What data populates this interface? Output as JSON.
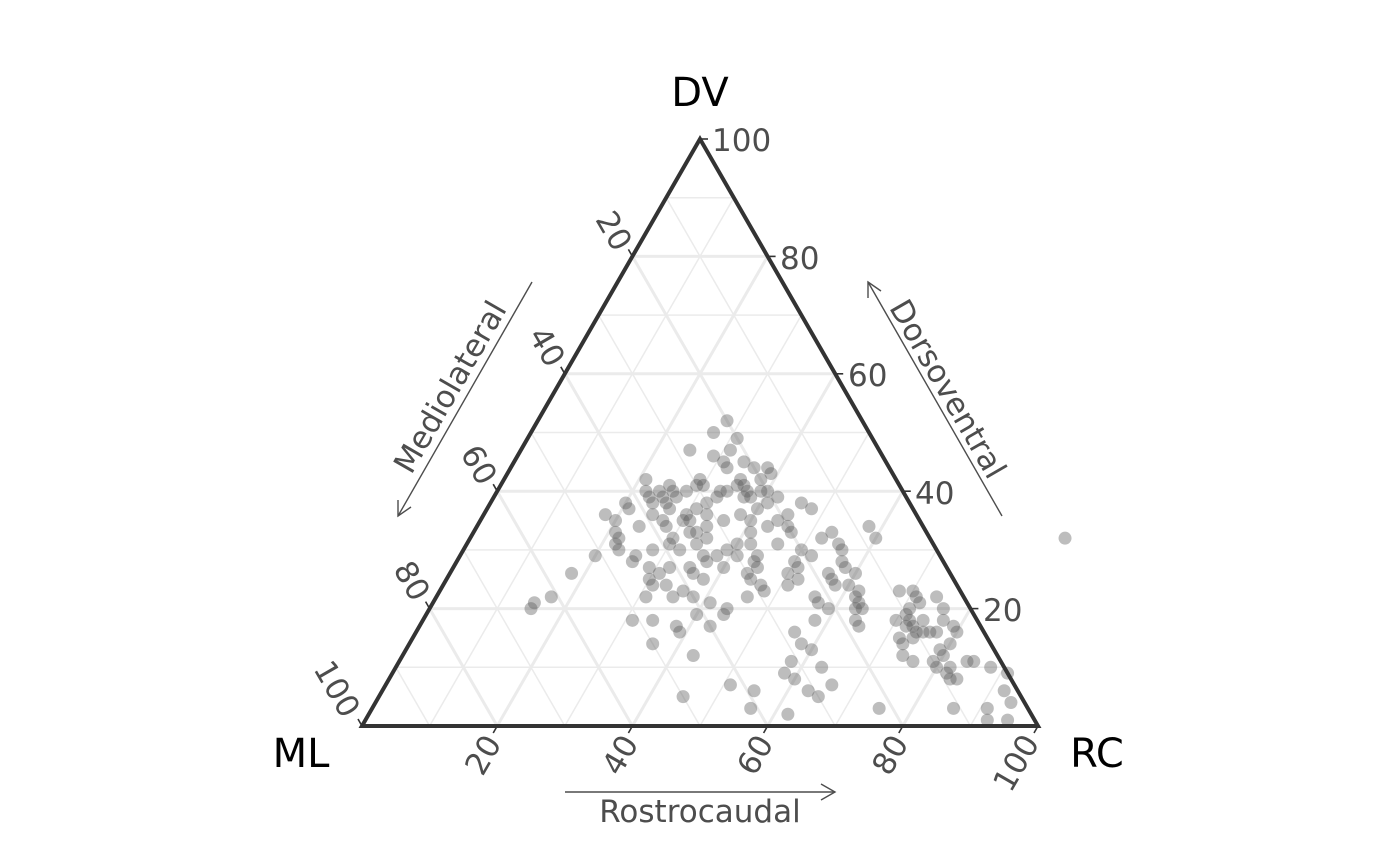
{
  "chart_data": {
    "type": "scatter",
    "subtype": "ternary",
    "vertices": {
      "top": "DV",
      "left": "ML",
      "right": "RC"
    },
    "axes": {
      "bottom": {
        "title": "Rostrocaudal",
        "variable": "RC",
        "ticks": [
          "20",
          "40",
          "60",
          "80",
          "100"
        ]
      },
      "right": {
        "title": "Dorsoventral",
        "variable": "DV",
        "ticks": [
          "20",
          "40",
          "60",
          "80",
          "100"
        ]
      },
      "left": {
        "title": "Mediolateral",
        "variable": "ML",
        "ticks": [
          "20",
          "40",
          "60",
          "80",
          "100"
        ]
      }
    },
    "range": [
      0,
      100
    ],
    "grid": true,
    "point_color": "#595959",
    "point_opacity": 0.4,
    "points": [
      {
        "dv": 52,
        "rc": 28
      },
      {
        "dv": 50,
        "rc": 27
      },
      {
        "dv": 47,
        "rc": 25
      },
      {
        "dv": 46,
        "rc": 29
      },
      {
        "dv": 47,
        "rc": 31
      },
      {
        "dv": 49,
        "rc": 31
      },
      {
        "dv": 42,
        "rc": 21
      },
      {
        "dv": 40,
        "rc": 22
      },
      {
        "dv": 40,
        "rc": 24
      },
      {
        "dv": 41,
        "rc": 25
      },
      {
        "dv": 40,
        "rc": 26
      },
      {
        "dv": 39,
        "rc": 25
      },
      {
        "dv": 39,
        "rc": 23
      },
      {
        "dv": 38,
        "rc": 24
      },
      {
        "dv": 39,
        "rc": 27
      },
      {
        "dv": 40,
        "rc": 28
      },
      {
        "dv": 41,
        "rc": 29
      },
      {
        "dv": 42,
        "rc": 29
      },
      {
        "dv": 41,
        "rc": 30
      },
      {
        "dv": 38,
        "rc": 26
      },
      {
        "dv": 37,
        "rc": 27
      },
      {
        "dv": 36,
        "rc": 25
      },
      {
        "dv": 35,
        "rc": 27
      },
      {
        "dv": 34,
        "rc": 24
      },
      {
        "dv": 33,
        "rc": 21
      },
      {
        "dv": 32,
        "rc": 22
      },
      {
        "dv": 31,
        "rc": 22
      },
      {
        "dv": 30,
        "rc": 23
      },
      {
        "dv": 29,
        "rc": 26
      },
      {
        "dv": 30,
        "rc": 28
      },
      {
        "dv": 32,
        "rc": 30
      },
      {
        "dv": 33,
        "rc": 32
      },
      {
        "dv": 35,
        "rc": 31
      },
      {
        "dv": 36,
        "rc": 30
      },
      {
        "dv": 37,
        "rc": 31
      },
      {
        "dv": 38,
        "rc": 32
      },
      {
        "dv": 39,
        "rc": 33
      },
      {
        "dv": 40,
        "rc": 33
      },
      {
        "dv": 40,
        "rc": 34
      },
      {
        "dv": 41,
        "rc": 35
      },
      {
        "dv": 42,
        "rc": 35
      },
      {
        "dv": 41,
        "rc": 36
      },
      {
        "dv": 40,
        "rc": 37
      },
      {
        "dv": 39,
        "rc": 37
      },
      {
        "dv": 39,
        "rc": 38
      },
      {
        "dv": 40,
        "rc": 39
      },
      {
        "dv": 42,
        "rc": 38
      },
      {
        "dv": 43,
        "rc": 39
      },
      {
        "dv": 44,
        "rc": 38
      },
      {
        "dv": 40,
        "rc": 40
      },
      {
        "dv": 39,
        "rc": 42
      },
      {
        "dv": 38,
        "rc": 41
      },
      {
        "dv": 37,
        "rc": 40
      },
      {
        "dv": 36,
        "rc": 38
      },
      {
        "dv": 35,
        "rc": 36
      },
      {
        "dv": 34,
        "rc": 34
      },
      {
        "dv": 33,
        "rc": 33
      },
      {
        "dv": 32,
        "rc": 35
      },
      {
        "dv": 31,
        "rc": 34
      },
      {
        "dv": 28,
        "rc": 26
      },
      {
        "dv": 27,
        "rc": 29
      },
      {
        "dv": 26,
        "rc": 31
      },
      {
        "dv": 25,
        "rc": 30
      },
      {
        "dv": 24,
        "rc": 31
      },
      {
        "dv": 22,
        "rc": 31
      },
      {
        "dv": 24,
        "rc": 33
      },
      {
        "dv": 27,
        "rc": 35
      },
      {
        "dv": 28,
        "rc": 37
      },
      {
        "dv": 29,
        "rc": 38
      },
      {
        "dv": 30,
        "rc": 39
      },
      {
        "dv": 31,
        "rc": 40
      },
      {
        "dv": 33,
        "rc": 41
      },
      {
        "dv": 34,
        "rc": 43
      },
      {
        "dv": 35,
        "rc": 44
      },
      {
        "dv": 36,
        "rc": 45
      },
      {
        "dv": 38,
        "rc": 46
      },
      {
        "dv": 37,
        "rc": 48
      },
      {
        "dv": 34,
        "rc": 46
      },
      {
        "dv": 33,
        "rc": 47
      },
      {
        "dv": 31,
        "rc": 46
      },
      {
        "dv": 29,
        "rc": 44
      },
      {
        "dv": 28,
        "rc": 44
      },
      {
        "dv": 27,
        "rc": 45
      },
      {
        "dv": 26,
        "rc": 44
      },
      {
        "dv": 25,
        "rc": 45
      },
      {
        "dv": 24,
        "rc": 47
      },
      {
        "dv": 23,
        "rc": 48
      },
      {
        "dv": 22,
        "rc": 46
      },
      {
        "dv": 20,
        "rc": 44
      },
      {
        "dv": 19,
        "rc": 44
      },
      {
        "dv": 17,
        "rc": 43
      },
      {
        "dv": 12,
        "rc": 43
      },
      {
        "dv": 30,
        "rc": 50
      },
      {
        "dv": 29,
        "rc": 52
      },
      {
        "dv": 28,
        "rc": 50
      },
      {
        "dv": 27,
        "rc": 51
      },
      {
        "dv": 26,
        "rc": 50
      },
      {
        "dv": 25,
        "rc": 52
      },
      {
        "dv": 24,
        "rc": 51
      },
      {
        "dv": 32,
        "rc": 52
      },
      {
        "dv": 33,
        "rc": 53
      },
      {
        "dv": 31,
        "rc": 55
      },
      {
        "dv": 30,
        "rc": 56
      },
      {
        "dv": 28,
        "rc": 57
      },
      {
        "dv": 26,
        "rc": 56
      },
      {
        "dv": 25,
        "rc": 57
      },
      {
        "dv": 24,
        "rc": 58
      },
      {
        "dv": 22,
        "rc": 56
      },
      {
        "dv": 21,
        "rc": 57
      },
      {
        "dv": 20,
        "rc": 59
      },
      {
        "dv": 18,
        "rc": 58
      },
      {
        "dv": 16,
        "rc": 56
      },
      {
        "dv": 14,
        "rc": 58
      },
      {
        "dv": 13,
        "rc": 60
      },
      {
        "dv": 11,
        "rc": 58
      },
      {
        "dv": 9,
        "rc": 58
      },
      {
        "dv": 6,
        "rc": 55
      },
      {
        "dv": 8,
        "rc": 60
      },
      {
        "dv": 10,
        "rc": 63
      },
      {
        "dv": 6,
        "rc": 63
      },
      {
        "dv": 5,
        "rc": 65
      },
      {
        "dv": 7,
        "rc": 66
      },
      {
        "dv": 32,
        "rc": 60
      },
      {
        "dv": 34,
        "rc": 58
      },
      {
        "dv": 27,
        "rc": 58
      },
      {
        "dv": 26,
        "rc": 60
      },
      {
        "dv": 24,
        "rc": 60
      },
      {
        "dv": 23,
        "rc": 62
      },
      {
        "dv": 22,
        "rc": 62
      },
      {
        "dv": 21,
        "rc": 63
      },
      {
        "dv": 20,
        "rc": 63
      },
      {
        "dv": 20,
        "rc": 64
      },
      {
        "dv": 18,
        "rc": 64
      },
      {
        "dv": 17,
        "rc": 65
      },
      {
        "dv": 23,
        "rc": 68
      },
      {
        "dv": 23,
        "rc": 70
      },
      {
        "dv": 22,
        "rc": 71
      },
      {
        "dv": 21,
        "rc": 72
      },
      {
        "dv": 20,
        "rc": 71
      },
      {
        "dv": 19,
        "rc": 71
      },
      {
        "dv": 18,
        "rc": 70
      },
      {
        "dv": 17,
        "rc": 72
      },
      {
        "dv": 18,
        "rc": 72
      },
      {
        "dv": 17,
        "rc": 73
      },
      {
        "dv": 18,
        "rc": 74
      },
      {
        "dv": 16,
        "rc": 74
      },
      {
        "dv": 16,
        "rc": 75
      },
      {
        "dv": 15,
        "rc": 74
      },
      {
        "dv": 14,
        "rc": 73
      },
      {
        "dv": 15,
        "rc": 72
      },
      {
        "dv": 22,
        "rc": 74
      },
      {
        "dv": 20,
        "rc": 76
      },
      {
        "dv": 18,
        "rc": 77
      },
      {
        "dv": 16,
        "rc": 77
      },
      {
        "dv": 17,
        "rc": 79
      },
      {
        "dv": 16,
        "rc": 80
      },
      {
        "dv": 16,
        "rc": 76
      },
      {
        "dv": 12,
        "rc": 74
      },
      {
        "dv": 11,
        "rc": 76
      },
      {
        "dv": 10,
        "rc": 80
      },
      {
        "dv": 12,
        "rc": 80
      },
      {
        "dv": 10,
        "rc": 82
      },
      {
        "dv": 9,
        "rc": 82
      },
      {
        "dv": 11,
        "rc": 84
      },
      {
        "dv": 11,
        "rc": 85
      },
      {
        "dv": 10,
        "rc": 88
      },
      {
        "dv": 8,
        "rc": 83
      },
      {
        "dv": 8,
        "rc": 84
      },
      {
        "dv": 9,
        "rc": 91
      },
      {
        "dv": 6,
        "rc": 92
      },
      {
        "dv": 4,
        "rc": 94
      },
      {
        "dv": 3,
        "rc": 91
      },
      {
        "dv": 1,
        "rc": 92
      },
      {
        "dv": 1,
        "rc": 95
      },
      {
        "dv": 3,
        "rc": 86
      },
      {
        "dv": 3,
        "rc": 75
      },
      {
        "dv": 2,
        "rc": 62
      },
      {
        "dv": 13,
        "rc": 79
      },
      {
        "dv": 14,
        "rc": 80
      },
      {
        "dv": 11,
        "rc": 79
      },
      {
        "dv": 32,
        "rc": 88
      },
      {
        "dv": 5,
        "rc": 45
      },
      {
        "dv": 7,
        "rc": 51
      },
      {
        "dv": 3,
        "rc": 56
      },
      {
        "dv": 14,
        "rc": 36
      },
      {
        "dv": 17,
        "rc": 38
      },
      {
        "dv": 19,
        "rc": 40
      },
      {
        "dv": 21,
        "rc": 41
      },
      {
        "dv": 16,
        "rc": 39
      },
      {
        "dv": 31,
        "rc": 42
      },
      {
        "dv": 29,
        "rc": 41
      },
      {
        "dv": 27,
        "rc": 40
      },
      {
        "dv": 25,
        "rc": 38
      },
      {
        "dv": 22,
        "rc": 35
      },
      {
        "dv": 23,
        "rc": 36
      },
      {
        "dv": 26,
        "rc": 36
      },
      {
        "dv": 27,
        "rc": 32
      },
      {
        "dv": 18,
        "rc": 31
      },
      {
        "dv": 18,
        "rc": 34
      },
      {
        "dv": 22,
        "rc": 38
      },
      {
        "dv": 29,
        "rc": 36
      },
      {
        "dv": 35,
        "rc": 40
      },
      {
        "dv": 44,
        "rc": 36
      },
      {
        "dv": 44,
        "rc": 32
      },
      {
        "dv": 45,
        "rc": 34
      },
      {
        "dv": 36,
        "rc": 33
      },
      {
        "dv": 45,
        "rc": 31
      },
      {
        "dv": 30,
        "rc": 32
      },
      {
        "dv": 31,
        "rc": 30
      },
      {
        "dv": 29,
        "rc": 20
      },
      {
        "dv": 26,
        "rc": 18
      },
      {
        "dv": 22,
        "rc": 17
      },
      {
        "dv": 20,
        "rc": 15
      },
      {
        "dv": 21,
        "rc": 15
      },
      {
        "dv": 35,
        "rc": 20
      },
      {
        "dv": 36,
        "rc": 18
      },
      {
        "dv": 37,
        "rc": 21
      },
      {
        "dv": 38,
        "rc": 20
      },
      {
        "dv": 35,
        "rc": 30
      },
      {
        "dv": 34,
        "rc": 28
      }
    ]
  }
}
